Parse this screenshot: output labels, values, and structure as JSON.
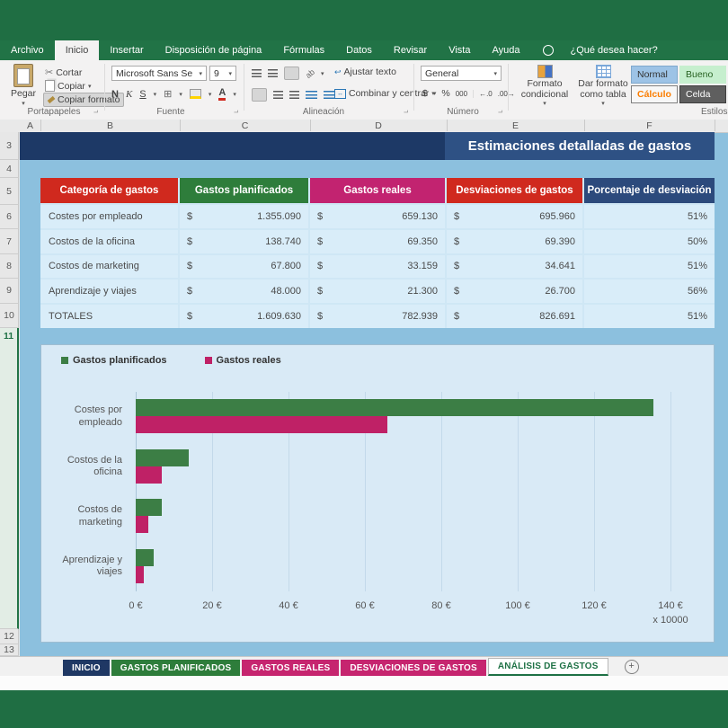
{
  "menu": {
    "items": [
      "Archivo",
      "Inicio",
      "Insertar",
      "Disposición de página",
      "Fórmulas",
      "Datos",
      "Revisar",
      "Vista",
      "Ayuda"
    ],
    "active": "Inicio",
    "search_hint": "¿Qué desea hacer?"
  },
  "ribbon": {
    "clipboard": {
      "label": "Portapapeles",
      "paste": "Pegar",
      "cut": "Cortar",
      "copy": "Copiar",
      "format_painter": "Copiar formato"
    },
    "font": {
      "label": "Fuente",
      "font_name": "Microsoft Sans Se",
      "font_size": "9",
      "bold": "N",
      "italic": "K",
      "underline": "S",
      "color_letter": "A"
    },
    "alignment": {
      "label": "Alineación",
      "wrap": "Ajustar texto",
      "merge": "Combinar y centrar"
    },
    "number": {
      "label": "Número",
      "format": "General",
      "currency": "$",
      "percent": "%",
      "thousands": "000",
      "inc_dec": "←.0",
      "dec_dec": ".00→"
    },
    "styles": {
      "label": "Estilos",
      "conditional": "Formato condicional",
      "format_table": "Dar formato como tabla",
      "gallery": [
        {
          "label": "Normal",
          "bg": "#9dc3e6",
          "fg": "#333333",
          "border": "#7fa8cc"
        },
        {
          "label": "Bueno",
          "bg": "#c6efce",
          "fg": "#276221",
          "border": "#c6efce"
        },
        {
          "label": "Cálculo",
          "bg": "#f7f7f7",
          "fg": "#fa7d00",
          "border": "#7f7f7f"
        },
        {
          "label": "Celda",
          "bg": "#5f5f5f",
          "fg": "#ffffff",
          "border": "#3f3f3f"
        }
      ]
    }
  },
  "grid": {
    "columns": [
      "A",
      "B",
      "C",
      "D",
      "E",
      "F"
    ],
    "rows": [
      "3",
      "4",
      "5",
      "6",
      "7",
      "8",
      "9",
      "10",
      "11",
      "12",
      "13"
    ],
    "selected_row": "11"
  },
  "sheet": {
    "title": "Estimaciones detalladas de gastos"
  },
  "table": {
    "headers": [
      "Categoría de gastos",
      "Gastos planificados",
      "Gastos reales",
      "Desviaciones de gastos",
      "Porcentaje de desviación"
    ],
    "header_colors": [
      "#d0291e",
      "#2e7d3b",
      "#c22370",
      "#d0291e",
      "#2c4a7c"
    ],
    "currency": "$",
    "rows": [
      {
        "category": "Costes por empleado",
        "planned": "1.355.090",
        "real": "659.130",
        "deviation": "695.960",
        "percent": "51%"
      },
      {
        "category": "Costos de la oficina",
        "planned": "138.740",
        "real": "69.350",
        "deviation": "69.390",
        "percent": "50%"
      },
      {
        "category": "Costos de marketing",
        "planned": "67.800",
        "real": "33.159",
        "deviation": "34.641",
        "percent": "51%"
      },
      {
        "category": "Aprendizaje y viajes",
        "planned": "48.000",
        "real": "21.300",
        "deviation": "26.700",
        "percent": "56%"
      },
      {
        "category": "TOTALES",
        "planned": "1.609.630",
        "real": "782.939",
        "deviation": "826.691",
        "percent": "51%"
      }
    ]
  },
  "chart_data": {
    "type": "bar",
    "orientation": "horizontal",
    "categories": [
      "Costes por empleado",
      "Costos de la oficina",
      "Costos de marketing",
      "Aprendizaje y viajes"
    ],
    "series": [
      {
        "name": "Gastos planificados",
        "color": "#3c7e45",
        "values": [
          135.5,
          13.87,
          6.78,
          4.8
        ]
      },
      {
        "name": "Gastos reales",
        "color": "#bf2166",
        "values": [
          65.91,
          6.94,
          3.32,
          2.13
        ]
      }
    ],
    "xlim": [
      0,
      140
    ],
    "x_ticks": [
      "0 €",
      "20 €",
      "40 €",
      "60 €",
      "80 €",
      "100 €",
      "120 €",
      "140 €"
    ],
    "x_multiplier": "x 10000",
    "legend_position": "top-left",
    "grid": true
  },
  "tabs": {
    "items": [
      {
        "label": "INICIO",
        "color": "#1f3864"
      },
      {
        "label": "GASTOS PLANIFICADOS",
        "color": "#2e7d3b"
      },
      {
        "label": "GASTOS REALES",
        "color": "#c6256f"
      },
      {
        "label": "DESVIACIONES DE GASTOS",
        "color": "#c6256f"
      },
      {
        "label": "ANÁLISIS DE GASTOS",
        "color": "active"
      }
    ],
    "active": "ANÁLISIS DE GASTOS",
    "add_label": "+"
  }
}
